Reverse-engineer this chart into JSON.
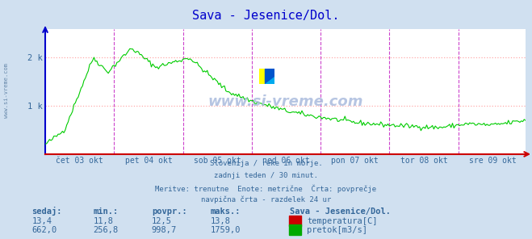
{
  "title": "Sava - Jesenice/Dol.",
  "title_color": "#0000cc",
  "bg_color": "#d0e0f0",
  "plot_bg_color": "#ffffff",
  "axis_color": "#0000cc",
  "grid_color": "#ffaaaa",
  "ylabel_ticks": [
    "1 k",
    "2 k"
  ],
  "ytick_vals": [
    1000,
    2000
  ],
  "ylim": [
    0,
    2600
  ],
  "x_labels": [
    "čet 03 okt",
    "pet 04 okt",
    "sob 05 okt",
    "ned 06 okt",
    "pon 07 okt",
    "tor 08 okt",
    "sre 09 okt"
  ],
  "x_label_color": "#336699",
  "line_color": "#00cc00",
  "vline_color": "#cc44cc",
  "watermark": "www.si-vreme.com",
  "watermark_color": "#aabbdd",
  "subtitle_lines": [
    "Slovenija / reke in morje.",
    "zadnji teden / 30 minut.",
    "Meritve: trenutne  Enote: metrične  Črta: povprečje",
    "navpična črta - razdelek 24 ur"
  ],
  "subtitle_color": "#336699",
  "stats_headers": [
    "sedaj:",
    "min.:",
    "povpr.:",
    "maks.:"
  ],
  "stats_temp": [
    "13,4",
    "11,8",
    "12,5",
    "13,8"
  ],
  "stats_flow": [
    "662,0",
    "256,8",
    "998,7",
    "1759,0"
  ],
  "legend_label_temp": "temperatura[C]",
  "legend_label_flow": "pretok[m3/s]",
  "legend_color_temp": "#cc0000",
  "legend_color_flow": "#00aa00",
  "legend_title": "Sava - Jesenice/Dol.",
  "stats_color": "#336699",
  "n_points": 336
}
